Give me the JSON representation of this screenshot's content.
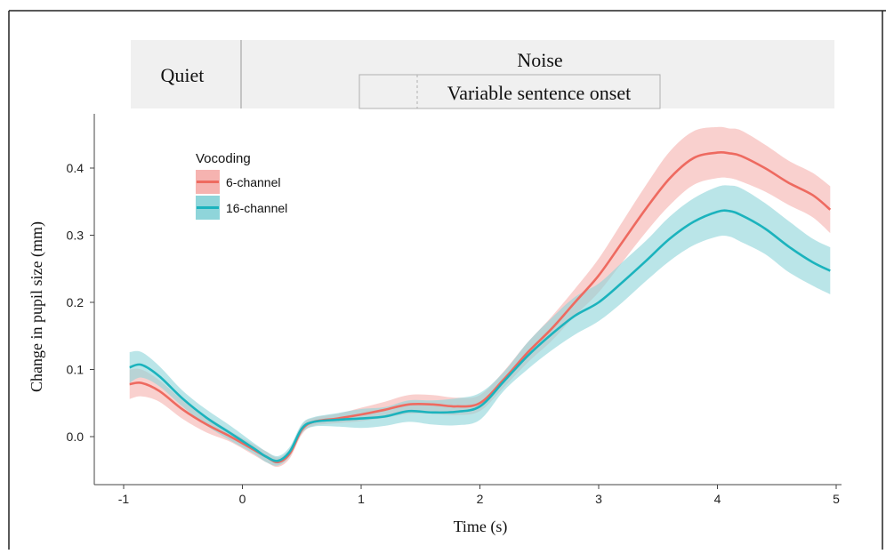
{
  "header": {
    "quiet_label": "Quiet",
    "noise_label": "Noise",
    "onset_label": "Variable sentence onset",
    "panel_color": "#f0f0f0"
  },
  "chart_data": {
    "type": "line",
    "xlabel": "Time (s)",
    "ylabel": "Change in pupil size (mm)",
    "xlim": [
      -1,
      5
    ],
    "ylim": [
      -0.07,
      0.47
    ],
    "x_ticks": [
      -1,
      0,
      1,
      2,
      3,
      4,
      5
    ],
    "y_ticks": [
      0.0,
      0.1,
      0.2,
      0.3,
      0.4
    ],
    "x_tick_labels": [
      "-1",
      "0",
      "1",
      "2",
      "3",
      "4",
      "5"
    ],
    "y_tick_labels": [
      "0.0",
      "0.1",
      "0.2",
      "0.3",
      "0.4"
    ],
    "grid": false,
    "legend": {
      "title": "Vocoding",
      "placement": "top-left"
    },
    "series": [
      {
        "name": "6-channel",
        "color": "#ee6a60",
        "band_color": "#f6b3b0",
        "x": [
          -0.95,
          -0.85,
          -0.7,
          -0.5,
          -0.3,
          -0.1,
          0.1,
          0.2,
          0.3,
          0.4,
          0.5,
          0.6,
          0.8,
          1.0,
          1.2,
          1.4,
          1.6,
          1.8,
          2.0,
          2.2,
          2.4,
          2.6,
          2.8,
          3.0,
          3.2,
          3.4,
          3.6,
          3.8,
          4.0,
          4.1,
          4.2,
          4.4,
          4.6,
          4.8,
          4.95
        ],
        "y": [
          0.078,
          0.08,
          0.068,
          0.04,
          0.018,
          0.0,
          -0.02,
          -0.03,
          -0.038,
          -0.025,
          0.01,
          0.022,
          0.027,
          0.033,
          0.04,
          0.048,
          0.048,
          0.045,
          0.05,
          0.085,
          0.125,
          0.16,
          0.2,
          0.24,
          0.29,
          0.34,
          0.385,
          0.415,
          0.423,
          0.422,
          0.418,
          0.4,
          0.378,
          0.36,
          0.338
        ],
        "lower": [
          0.056,
          0.06,
          0.052,
          0.026,
          0.006,
          -0.008,
          -0.028,
          -0.038,
          -0.045,
          -0.032,
          0.003,
          0.016,
          0.02,
          0.023,
          0.028,
          0.034,
          0.034,
          0.032,
          0.038,
          0.073,
          0.11,
          0.142,
          0.18,
          0.215,
          0.26,
          0.305,
          0.345,
          0.375,
          0.385,
          0.385,
          0.38,
          0.365,
          0.345,
          0.327,
          0.303
        ],
        "upper": [
          0.1,
          0.1,
          0.084,
          0.054,
          0.03,
          0.008,
          -0.012,
          -0.022,
          -0.031,
          -0.018,
          0.017,
          0.028,
          0.034,
          0.043,
          0.052,
          0.062,
          0.062,
          0.058,
          0.062,
          0.097,
          0.14,
          0.178,
          0.22,
          0.265,
          0.32,
          0.375,
          0.425,
          0.455,
          0.461,
          0.459,
          0.456,
          0.435,
          0.411,
          0.393,
          0.373
        ]
      },
      {
        "name": "16-channel",
        "color": "#1bb3bd",
        "band_color": "#8fd5da",
        "x": [
          -0.95,
          -0.85,
          -0.7,
          -0.5,
          -0.3,
          -0.1,
          0.1,
          0.2,
          0.3,
          0.4,
          0.5,
          0.6,
          0.8,
          1.0,
          1.2,
          1.4,
          1.6,
          1.8,
          2.0,
          2.2,
          2.4,
          2.6,
          2.8,
          3.0,
          3.2,
          3.4,
          3.6,
          3.8,
          4.0,
          4.1,
          4.2,
          4.4,
          4.6,
          4.8,
          4.95
        ],
        "y": [
          0.103,
          0.107,
          0.09,
          0.056,
          0.028,
          0.005,
          -0.018,
          -0.03,
          -0.036,
          -0.022,
          0.012,
          0.022,
          0.025,
          0.027,
          0.03,
          0.038,
          0.036,
          0.037,
          0.045,
          0.082,
          0.12,
          0.152,
          0.18,
          0.2,
          0.23,
          0.262,
          0.295,
          0.32,
          0.335,
          0.336,
          0.33,
          0.31,
          0.283,
          0.26,
          0.247
        ],
        "lower": [
          0.08,
          0.088,
          0.075,
          0.044,
          0.016,
          -0.006,
          -0.026,
          -0.038,
          -0.043,
          -0.029,
          0.005,
          0.015,
          0.015,
          0.013,
          0.016,
          0.022,
          0.018,
          0.017,
          0.025,
          0.068,
          0.1,
          0.128,
          0.152,
          0.172,
          0.2,
          0.232,
          0.262,
          0.285,
          0.298,
          0.298,
          0.29,
          0.272,
          0.245,
          0.225,
          0.212
        ],
        "upper": [
          0.126,
          0.126,
          0.105,
          0.068,
          0.04,
          0.016,
          -0.01,
          -0.022,
          -0.029,
          -0.015,
          0.019,
          0.029,
          0.035,
          0.041,
          0.044,
          0.054,
          0.054,
          0.057,
          0.065,
          0.096,
          0.14,
          0.176,
          0.208,
          0.228,
          0.26,
          0.292,
          0.328,
          0.355,
          0.372,
          0.374,
          0.37,
          0.348,
          0.321,
          0.295,
          0.282
        ]
      }
    ]
  }
}
